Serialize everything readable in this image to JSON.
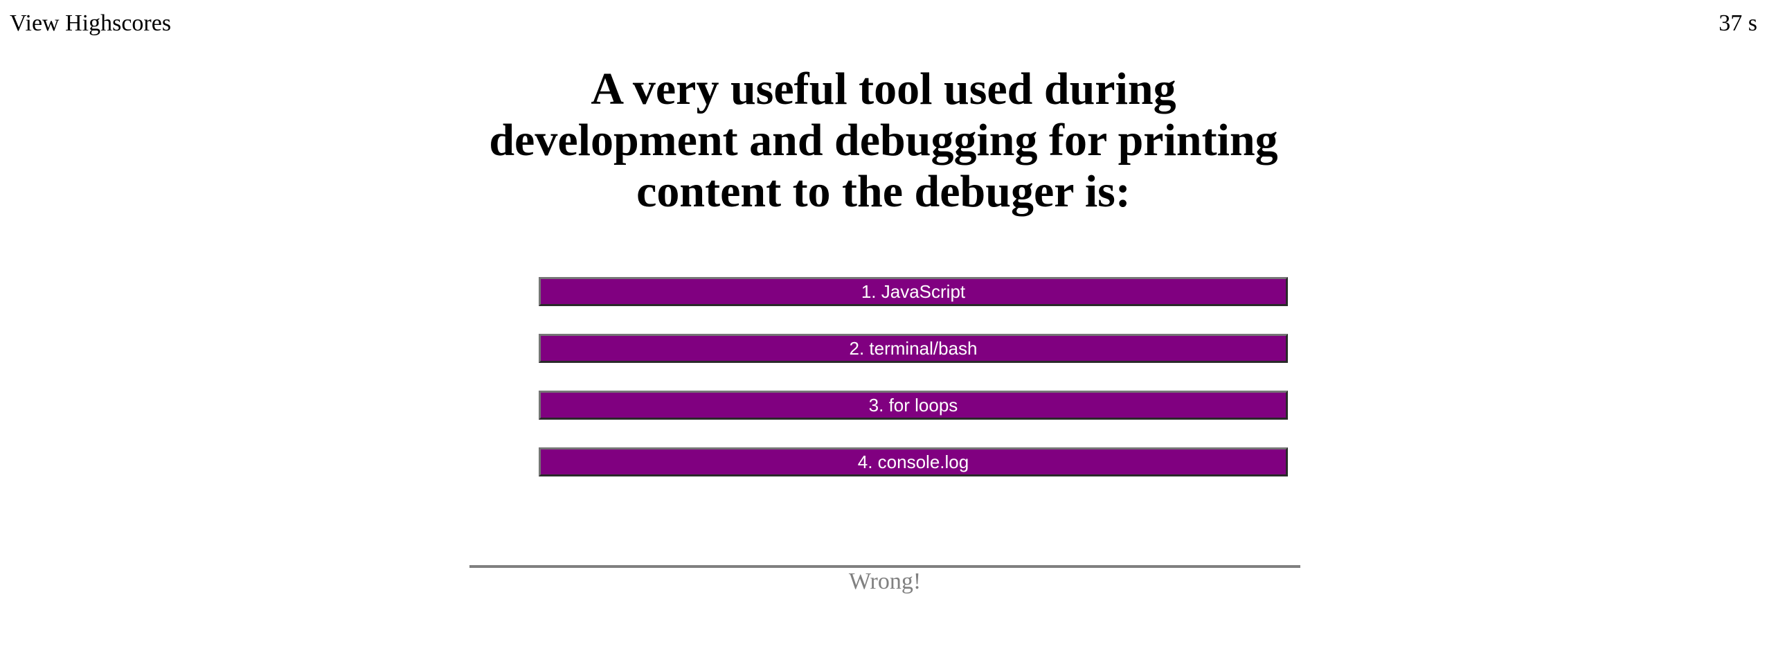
{
  "header": {
    "highscores_link": "View Highscores",
    "timer": "37 s"
  },
  "question": {
    "text": "A very useful tool used during development and debugging for printing content to the debuger is:"
  },
  "choices": [
    {
      "label": "1. JavaScript"
    },
    {
      "label": "2. terminal/bash"
    },
    {
      "label": "3. for loops"
    },
    {
      "label": "4. console.log"
    }
  ],
  "feedback": {
    "text": "Wrong!"
  },
  "colors": {
    "choice_background": "#800080",
    "choice_text": "#ffffff",
    "feedback_text": "#808080"
  }
}
